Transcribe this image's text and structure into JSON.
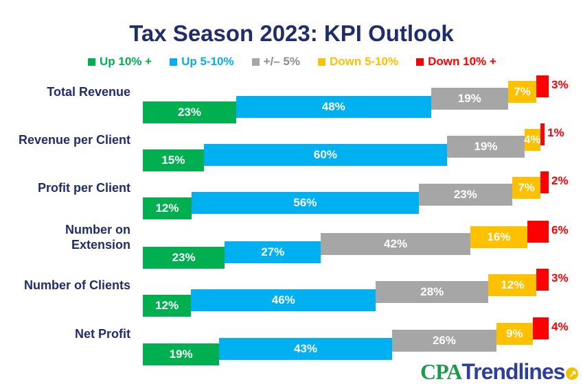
{
  "chart_data": {
    "type": "bar",
    "orientation": "horizontal-stacked",
    "title": "Tax Season 2023:  KPI Outlook",
    "categories": [
      "Total Revenue",
      "Revenue per Client",
      "Profit per Client",
      "Number on\nExtension",
      "Number of Clients",
      "Net Profit"
    ],
    "series": [
      {
        "name": "Up 10% +",
        "color": "#00b050",
        "values": [
          23,
          15,
          12,
          23,
          12,
          19
        ]
      },
      {
        "name": "Up 5-10%",
        "color": "#00b0f0",
        "values": [
          48,
          60,
          56,
          27,
          46,
          43
        ]
      },
      {
        "name": "+/– 5%",
        "color": "#a6a6a6",
        "values": [
          19,
          19,
          23,
          42,
          28,
          26
        ]
      },
      {
        "name": "Down 5-10%",
        "color": "#ffc000",
        "values": [
          7,
          4,
          7,
          16,
          12,
          9
        ]
      },
      {
        "name": "Down 10% +",
        "color": "#ff0000",
        "values": [
          3,
          1,
          2,
          6,
          3,
          4
        ]
      }
    ],
    "legend": "top",
    "grid": false
  },
  "logo": {
    "text_cpa": "CPA",
    "text_trend": "Trendlines"
  }
}
